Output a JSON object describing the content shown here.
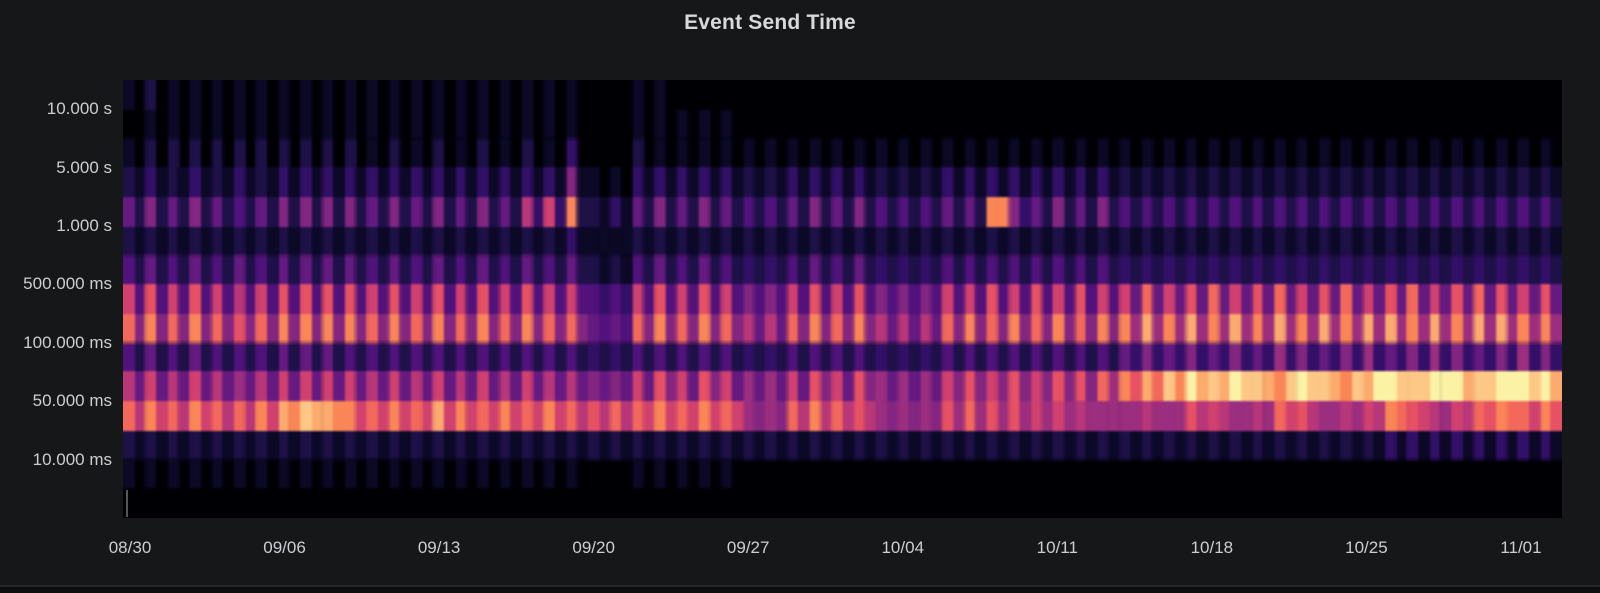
{
  "panel": {
    "title": "Event Send Time",
    "background": "#161719",
    "plot_background": "#000004",
    "title_color": "#d8d9da",
    "axis_text_color": "#ccced2",
    "bottom_border_color": "#26272a",
    "bottom_strip_color": "#0d0e10"
  },
  "chart_data": {
    "type": "heatmap",
    "title": "Event Send Time",
    "x_tick_labels": [
      "08/30",
      "09/06",
      "09/13",
      "09/20",
      "09/27",
      "10/04",
      "10/11",
      "10/18",
      "10/25",
      "11/01"
    ],
    "x_tick_interval": "1 week",
    "y_tick_labels": [
      "10.000 s",
      "5.000 s",
      "1.000 s",
      "500.000 ms",
      "100.000 ms",
      "50.000 ms",
      "10.000 ms"
    ],
    "y_tick_row_boundary_indices": [
      1,
      3,
      5,
      7,
      9,
      11,
      13
    ],
    "n_rows": 14,
    "n_cols": 130,
    "cell_duration": "12h per column, latency bucket per row (log scale, largest at top)",
    "value_encoding": "each character is one cell, hex digit 0 (no events) to f (max event density)",
    "legend": "none",
    "grid": "off",
    "palette": [
      "#000004",
      "#0c0926",
      "#1d1147",
      "#331068",
      "#51127c",
      "#641a80",
      "#822681",
      "#9b2e7f",
      "#b73779",
      "#d0416f",
      "#e65164",
      "#f2695c",
      "#fa8657",
      "#fcaa6e",
      "#fdc786",
      "#fbf2a5"
    ],
    "rows": [
      [
        "10201010101010",
        "101010",
        "10101010101010101010",
        "10",
        "0000",
        "1010000000",
        "0000",
        "00000000",
        "000000",
        "0000000000000000",
        "0000000000000000000000000000000000000000"
      ],
      [
        "00101010101010",
        "101010",
        "10101010101010101010",
        "10",
        "0000",
        "1010101010",
        "0000",
        "00000000",
        "000000",
        "0000000000000000",
        "0000000000000000000000000000000000000000"
      ],
      [
        "10202020202020",
        "202020",
        "20102010201020102010",
        "30",
        "0000",
        "2010101010",
        "1010",
        "10101010",
        "101010",
        "1010101010101010",
        "1010101010101010101010101010101010101010"
      ],
      [
        "21312131213121",
        "313131",
        "31313131313131313131",
        "61",
        "1010",
        "3131313131",
        "2121",
        "31313131",
        "212121",
        "3131313131313131",
        "2121212121212121212121212121212121212121"
      ],
      [
        "52625262524252",
        "626262",
        "62526252625262528393",
        "c2",
        "2131",
        "5262526252",
        "4242",
        "52625262",
        "424242",
        "5252cc6352625262",
        "4242424242424242424242424242424242424242"
      ],
      [
        "21212121212121",
        "212121",
        "21212121212121212121",
        "31",
        "1111",
        "2121212121",
        "2121",
        "21212121",
        "212121",
        "2121212121212121",
        "2121212121212121212121212121212121212121"
      ],
      [
        "42524252425242",
        "525252",
        "52425242524252425242",
        "52",
        "2121",
        "4252425242",
        "3232",
        "42524252",
        "323232",
        "4242424242424242",
        "3232323232323232323232323232323232323232"
      ],
      [
        "94a494a4948494",
        "a4a4a4",
        "a494a494a494a494a494",
        "94",
        "4343",
        "94a494a494",
        "6464",
        "94a494a4",
        "646464",
        "9494a494a494a494",
        "95b595a5b595a5b595a5b595a5b595a5b5a595a5"
      ],
      [
        "b6c6b6c6b6a6b6",
        "c6c6c6",
        "c6b6c6b6c6b6c6b6c6b6",
        "b6",
        "5454",
        "b6c6b6c6b6",
        "8585",
        "b6c6b6c6",
        "858585",
        "b6c6b6c6b6c6b6c6",
        "c7d7c7d7c7d7c7d7c7d7c7d7d7c7d7c7d7d7c7c7"
      ],
      [
        "42524252424242",
        "525252",
        "42424242424242424242",
        "42",
        "3232",
        "4242424242",
        "3232",
        "42424242",
        "323232",
        "4242424242424242",
        "5363536353635373635363735363736353637363"
      ],
      [
        "85958595857585",
        "959595",
        "95859585958595859585",
        "85",
        "6565",
        "95a695a695",
        "7575",
        "95a695a6",
        "757575",
        "96a696a696a6a6b7",
        "cadbecfdedfeedcefeedcedffeeefffdeefffefd"
      ],
      [
        "b8c9b8c9b8b8c9",
        "dceddc",
        "c9b9c9b9d9c9b9c9b9c9",
        "b8",
        "a8b8",
        "b9c9b9c9b9",
        "7676",
        "b8c8b8a8",
        "767676",
        "a7b7a7a797978777",
        "778777a8987787b9a8778798cba98798bacbb9ca"
      ],
      [
        "21212121212121",
        "212121",
        "21212121212121212121",
        "21",
        "2121",
        "2121212121",
        "2121",
        "21212121",
        "212121",
        "2121212121212121",
        "2121212121212121212121213131313131313131"
      ],
      [
        "10101010101010",
        "101010",
        "10101010101010101010",
        "10",
        "0000",
        "1010101010",
        "0000",
        "00000000",
        "000000",
        "0000000000000000",
        "0000000000000000000000000000000000000000"
      ]
    ]
  }
}
